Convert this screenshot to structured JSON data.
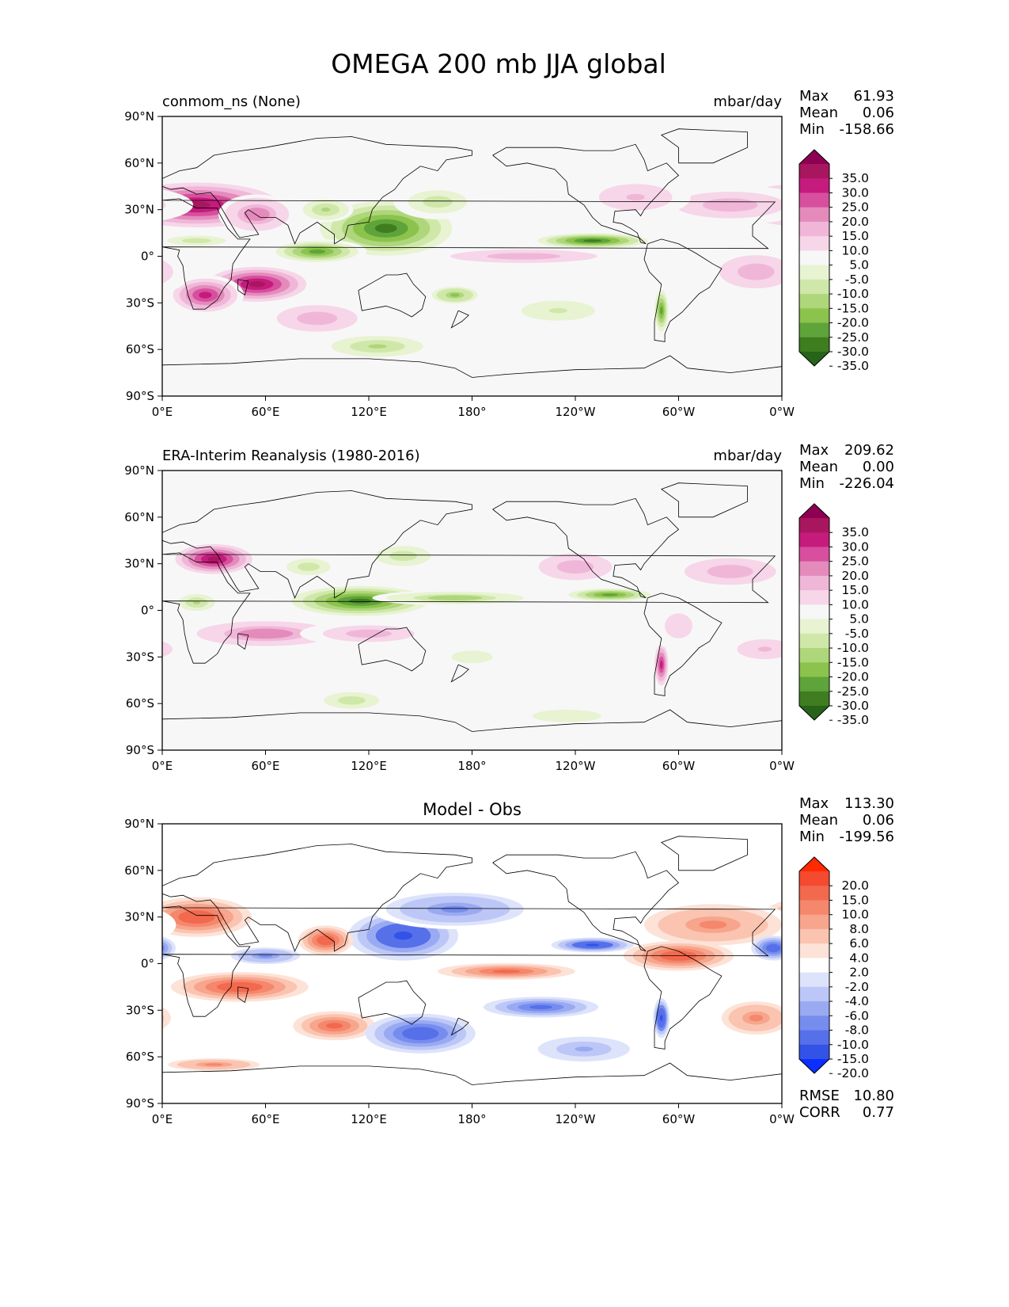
{
  "title": "OMEGA 200 mb JJA global",
  "chart_data": [
    {
      "type": "heatmap",
      "left_title": "conmom_ns (None)",
      "center_title": "",
      "units": "mbar/day",
      "stats": [
        {
          "label": "Max",
          "value": "61.93"
        },
        {
          "label": "Mean",
          "value": "0.06"
        },
        {
          "label": "Min",
          "value": "-158.66"
        }
      ],
      "x_ticks": [
        "0°E",
        "60°E",
        "120°E",
        "180°",
        "120°W",
        "60°W",
        "0°W"
      ],
      "y_ticks": [
        "90°N",
        "60°N",
        "30°N",
        "0°",
        "30°S",
        "60°S",
        "90°S"
      ],
      "xlim": [
        0,
        360
      ],
      "ylim": [
        -90,
        90
      ],
      "colorbar_labels": [
        "35.0",
        "30.0",
        "25.0",
        "20.0",
        "15.0",
        "10.0",
        "5.0",
        "-5.0",
        "-10.0",
        "-15.0",
        "-20.0",
        "-25.0",
        "-30.0",
        "-35.0"
      ],
      "colorbar_colors": [
        "#8e0152",
        "#a8165f",
        "#c51b7d",
        "#d74f9e",
        "#e48bbc",
        "#f0b6d8",
        "#f6d6e8",
        "#f7f7f7",
        "#e7f3d1",
        "#cfe8a9",
        "#aed67a",
        "#8bc34c",
        "#5ea43a",
        "#3f7d20",
        "#276419"
      ],
      "stats_bottom": []
    },
    {
      "type": "heatmap",
      "left_title": "ERA-Interim Reanalysis (1980-2016)",
      "center_title": "",
      "units": "mbar/day",
      "stats": [
        {
          "label": "Max",
          "value": "209.62"
        },
        {
          "label": "Mean",
          "value": "0.00"
        },
        {
          "label": "Min",
          "value": "-226.04"
        }
      ],
      "x_ticks": [
        "0°E",
        "60°E",
        "120°E",
        "180°",
        "120°W",
        "60°W",
        "0°W"
      ],
      "y_ticks": [
        "90°N",
        "60°N",
        "30°N",
        "0°",
        "30°S",
        "60°S",
        "90°S"
      ],
      "xlim": [
        0,
        360
      ],
      "ylim": [
        -90,
        90
      ],
      "colorbar_labels": [
        "35.0",
        "30.0",
        "25.0",
        "20.0",
        "15.0",
        "10.0",
        "5.0",
        "-5.0",
        "-10.0",
        "-15.0",
        "-20.0",
        "-25.0",
        "-30.0",
        "-35.0"
      ],
      "colorbar_colors": [
        "#8e0152",
        "#a8165f",
        "#c51b7d",
        "#d74f9e",
        "#e48bbc",
        "#f0b6d8",
        "#f6d6e8",
        "#f7f7f7",
        "#e7f3d1",
        "#cfe8a9",
        "#aed67a",
        "#8bc34c",
        "#5ea43a",
        "#3f7d20",
        "#276419"
      ],
      "stats_bottom": []
    },
    {
      "type": "heatmap",
      "left_title": "",
      "center_title": "Model - Obs",
      "units": "",
      "stats": [
        {
          "label": "Max",
          "value": "113.30"
        },
        {
          "label": "Mean",
          "value": "0.06"
        },
        {
          "label": "Min",
          "value": "-199.56"
        }
      ],
      "x_ticks": [
        "0°E",
        "60°E",
        "120°E",
        "180°",
        "120°W",
        "60°W",
        "0°W"
      ],
      "y_ticks": [
        "90°N",
        "60°N",
        "30°N",
        "0°",
        "30°S",
        "60°S",
        "90°S"
      ],
      "xlim": [
        0,
        360
      ],
      "ylim": [
        -90,
        90
      ],
      "colorbar_labels": [
        "20.0",
        "15.0",
        "10.0",
        "8.0",
        "6.0",
        "4.0",
        "2.0",
        "-2.0",
        "-4.0",
        "-6.0",
        "-8.0",
        "-10.0",
        "-15.0",
        "-20.0"
      ],
      "colorbar_colors": [
        "#ff2a00",
        "#f44a30",
        "#f3694e",
        "#f4876c",
        "#f7a58d",
        "#fac4b0",
        "#fde2d7",
        "#ffffff",
        "#dde3fb",
        "#bcc7f7",
        "#9aaaf2",
        "#778dee",
        "#5670ea",
        "#3352e6",
        "#0a2fff"
      ],
      "stats_bottom": [
        {
          "label": "RMSE",
          "value": "10.80"
        },
        {
          "label": "CORR",
          "value": "0.77"
        }
      ]
    }
  ],
  "features": {
    "plot1": [
      {
        "lon": 20,
        "lat": 33,
        "v": 38,
        "sx": 30,
        "sy": 9
      },
      {
        "lon": 55,
        "lat": 27,
        "v": 22,
        "sx": 14,
        "sy": 8
      },
      {
        "lon": 330,
        "lat": 33,
        "v": 16,
        "sx": 30,
        "sy": 8
      },
      {
        "lon": 275,
        "lat": 38,
        "v": 12,
        "sx": 20,
        "sy": 8
      },
      {
        "lon": 130,
        "lat": 18,
        "v": -38,
        "sx": 24,
        "sy": 11
      },
      {
        "lon": 90,
        "lat": 3,
        "v": -32,
        "sx": 18,
        "sy": 5
      },
      {
        "lon": 250,
        "lat": 10,
        "v": -36,
        "sx": 20,
        "sy": 3
      },
      {
        "lon": 20,
        "lat": 10,
        "v": -16,
        "sx": 16,
        "sy": 3
      },
      {
        "lon": 160,
        "lat": 35,
        "v": -14,
        "sx": 16,
        "sy": 7
      },
      {
        "lon": 55,
        "lat": -18,
        "v": 38,
        "sx": 18,
        "sy": 7
      },
      {
        "lon": 25,
        "lat": -25,
        "v": 30,
        "sx": 14,
        "sy": 8
      },
      {
        "lon": 90,
        "lat": -40,
        "v": 14,
        "sx": 22,
        "sy": 8
      },
      {
        "lon": 170,
        "lat": -25,
        "v": -26,
        "sx": 10,
        "sy": 4
      },
      {
        "lon": 125,
        "lat": -58,
        "v": -18,
        "sx": 20,
        "sy": 5
      },
      {
        "lon": 210,
        "lat": 0,
        "v": 14,
        "sx": 40,
        "sy": 4
      },
      {
        "lon": 345,
        "lat": -10,
        "v": 14,
        "sx": 20,
        "sy": 10
      },
      {
        "lon": 290,
        "lat": -35,
        "v": -32,
        "sx": 3,
        "sy": 10
      },
      {
        "lon": 230,
        "lat": -35,
        "v": -12,
        "sx": 20,
        "sy": 6
      },
      {
        "lon": 95,
        "lat": 30,
        "v": -20,
        "sx": 10,
        "sy": 5
      }
    ],
    "plot2": [
      {
        "lon": 30,
        "lat": 33,
        "v": 38,
        "sx": 14,
        "sy": 6
      },
      {
        "lon": 330,
        "lat": 25,
        "v": 14,
        "sx": 25,
        "sy": 8
      },
      {
        "lon": 240,
        "lat": 28,
        "v": 14,
        "sx": 20,
        "sy": 8
      },
      {
        "lon": 115,
        "lat": 6,
        "v": -38,
        "sx": 25,
        "sy": 6
      },
      {
        "lon": 170,
        "lat": 8,
        "v": -22,
        "sx": 30,
        "sy": 3
      },
      {
        "lon": 260,
        "lat": 10,
        "v": -30,
        "sx": 18,
        "sy": 3
      },
      {
        "lon": 20,
        "lat": 5,
        "v": -20,
        "sx": 8,
        "sy": 4
      },
      {
        "lon": 85,
        "lat": 28,
        "v": -16,
        "sx": 12,
        "sy": 5
      },
      {
        "lon": 140,
        "lat": 35,
        "v": -14,
        "sx": 15,
        "sy": 6
      },
      {
        "lon": 60,
        "lat": -15,
        "v": 22,
        "sx": 30,
        "sy": 6
      },
      {
        "lon": 120,
        "lat": -15,
        "v": 16,
        "sx": 25,
        "sy": 5
      },
      {
        "lon": 290,
        "lat": -35,
        "v": 30,
        "sx": 3,
        "sy": 10
      },
      {
        "lon": 300,
        "lat": -10,
        "v": 10,
        "sx": 10,
        "sy": 10
      },
      {
        "lon": 180,
        "lat": -30,
        "v": -10,
        "sx": 15,
        "sy": 5
      },
      {
        "lon": 110,
        "lat": -58,
        "v": -14,
        "sx": 15,
        "sy": 5
      },
      {
        "lon": 235,
        "lat": -68,
        "v": -10,
        "sx": 25,
        "sy": 5
      },
      {
        "lon": 350,
        "lat": -25,
        "v": 12,
        "sx": 15,
        "sy": 6
      }
    ],
    "plot3": [
      {
        "lon": 20,
        "lat": 30,
        "v": 14,
        "sx": 20,
        "sy": 8
      },
      {
        "lon": 320,
        "lat": 25,
        "v": 10,
        "sx": 30,
        "sy": 10
      },
      {
        "lon": 140,
        "lat": 18,
        "v": -18,
        "sx": 20,
        "sy": 10
      },
      {
        "lon": 95,
        "lat": 15,
        "v": 16,
        "sx": 10,
        "sy": 6
      },
      {
        "lon": 250,
        "lat": 12,
        "v": -18,
        "sx": 15,
        "sy": 3
      },
      {
        "lon": 300,
        "lat": 5,
        "v": 14,
        "sx": 20,
        "sy": 6
      },
      {
        "lon": 45,
        "lat": -15,
        "v": 16,
        "sx": 25,
        "sy": 6
      },
      {
        "lon": 100,
        "lat": -40,
        "v": 12,
        "sx": 18,
        "sy": 7
      },
      {
        "lon": 150,
        "lat": -45,
        "v": -14,
        "sx": 20,
        "sy": 8
      },
      {
        "lon": 220,
        "lat": -28,
        "v": -12,
        "sx": 25,
        "sy": 5
      },
      {
        "lon": 200,
        "lat": -5,
        "v": 12,
        "sx": 30,
        "sy": 4
      },
      {
        "lon": 170,
        "lat": 35,
        "v": -10,
        "sx": 30,
        "sy": 8
      },
      {
        "lon": 290,
        "lat": -35,
        "v": -20,
        "sx": 3,
        "sy": 8
      },
      {
        "lon": 355,
        "lat": 10,
        "v": -16,
        "sx": 8,
        "sy": 5
      },
      {
        "lon": 60,
        "lat": 5,
        "v": -10,
        "sx": 15,
        "sy": 4
      },
      {
        "lon": 30,
        "lat": -65,
        "v": 10,
        "sx": 20,
        "sy": 3
      },
      {
        "lon": 245,
        "lat": -55,
        "v": -8,
        "sx": 20,
        "sy": 6
      },
      {
        "lon": 345,
        "lat": -35,
        "v": 10,
        "sx": 15,
        "sy": 8
      }
    ]
  }
}
